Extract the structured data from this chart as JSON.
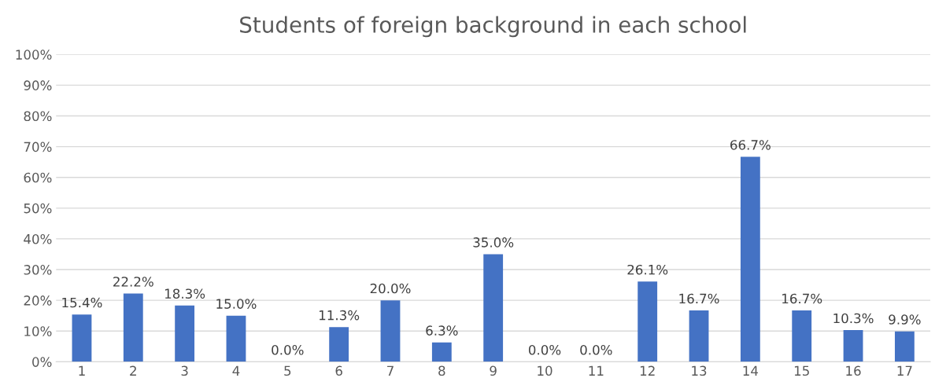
{
  "chart_data": {
    "type": "bar",
    "title": "Students of foreign background in each school",
    "categories": [
      "1",
      "2",
      "3",
      "4",
      "5",
      "6",
      "7",
      "8",
      "9",
      "10",
      "11",
      "12",
      "13",
      "14",
      "15",
      "16",
      "17"
    ],
    "values": [
      15.4,
      22.2,
      18.3,
      15.0,
      0.0,
      11.3,
      20.0,
      6.3,
      35.0,
      0.0,
      0.0,
      26.1,
      16.7,
      66.7,
      16.7,
      10.3,
      9.9
    ],
    "value_labels": [
      "15.4%",
      "22.2%",
      "18.3%",
      "15.0%",
      "0.0%",
      "11.3%",
      "20.0%",
      "6.3%",
      "35.0%",
      "0.0%",
      "0.0%",
      "26.1%",
      "16.7%",
      "66.7%",
      "16.7%",
      "10.3%",
      "9.9%"
    ],
    "color": "#4472c4",
    "ylim": [
      0,
      100
    ],
    "yticks": [
      {
        "value": 0,
        "label": "0%"
      },
      {
        "value": 10,
        "label": "10%"
      },
      {
        "value": 20,
        "label": "20%"
      },
      {
        "value": 30,
        "label": "30%"
      },
      {
        "value": 40,
        "label": "40%"
      },
      {
        "value": 50,
        "label": "50%"
      },
      {
        "value": 60,
        "label": "60%"
      },
      {
        "value": 70,
        "label": "70%"
      },
      {
        "value": 80,
        "label": "80%"
      },
      {
        "value": 90,
        "label": "90%"
      },
      {
        "value": 100,
        "label": "100%"
      }
    ],
    "grid": "y",
    "legend": false
  }
}
